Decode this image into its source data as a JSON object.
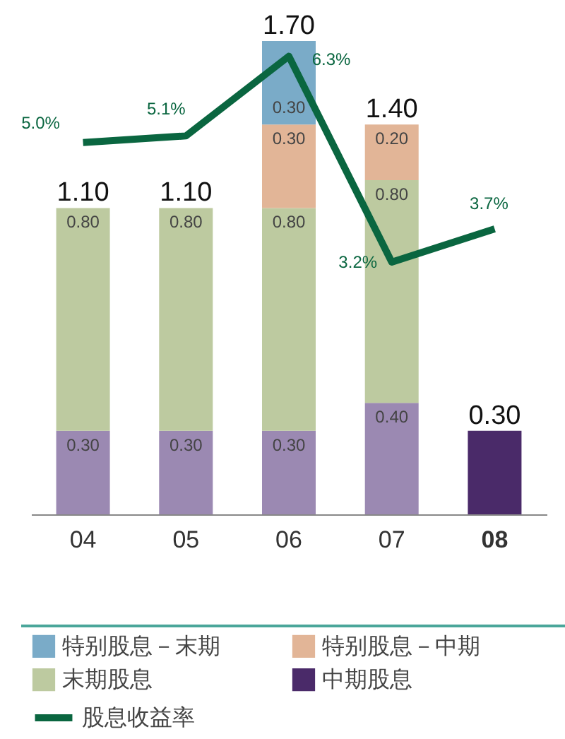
{
  "chart_data": {
    "type": "bar",
    "stacked": true,
    "categories": [
      "04",
      "05",
      "06",
      "07",
      "08"
    ],
    "series": [
      {
        "name": "中期股息",
        "color": "#4a2a69",
        "colors": [
          "#9b89b2",
          "#9b89b2",
          "#9b89b2",
          "#9b89b2",
          "#4a2a69"
        ],
        "values": [
          0.3,
          0.3,
          0.3,
          0.4,
          0.3
        ],
        "value_labels": [
          "0.30",
          "0.30",
          "0.30",
          "0.40",
          null
        ]
      },
      {
        "name": "末期股息",
        "color": "#bdcaa0",
        "values": [
          0.8,
          0.8,
          0.8,
          0.8,
          null
        ],
        "value_labels": [
          "0.80",
          "0.80",
          "0.80",
          "0.80",
          null
        ]
      },
      {
        "name": "特别股息－中期",
        "color": "#e2b597",
        "values": [
          null,
          null,
          0.3,
          0.2,
          null
        ],
        "value_labels": [
          null,
          null,
          "0.30",
          "0.20",
          null
        ]
      },
      {
        "name": "特别股息－末期",
        "color": "#7aabc8",
        "values": [
          null,
          null,
          0.3,
          null,
          null
        ],
        "value_labels": [
          null,
          null,
          "0.30",
          null,
          null
        ]
      },
      {
        "name": "股息收益率",
        "type": "line",
        "axis": "y2",
        "color": "#0a6640",
        "values": [
          5.0,
          5.1,
          6.3,
          3.2,
          3.7
        ],
        "value_labels": [
          "5.0%",
          "5.1%",
          "6.3%",
          "3.2%",
          "3.7%"
        ]
      }
    ],
    "totals": [
      "1.10",
      "1.10",
      "1.70",
      "1.40",
      "0.30"
    ],
    "ylim": [
      0,
      1.7
    ],
    "y2lim": [
      -0.6,
      6.53
    ],
    "tick_labels": "x",
    "legend": "bottom",
    "grid": false
  }
}
